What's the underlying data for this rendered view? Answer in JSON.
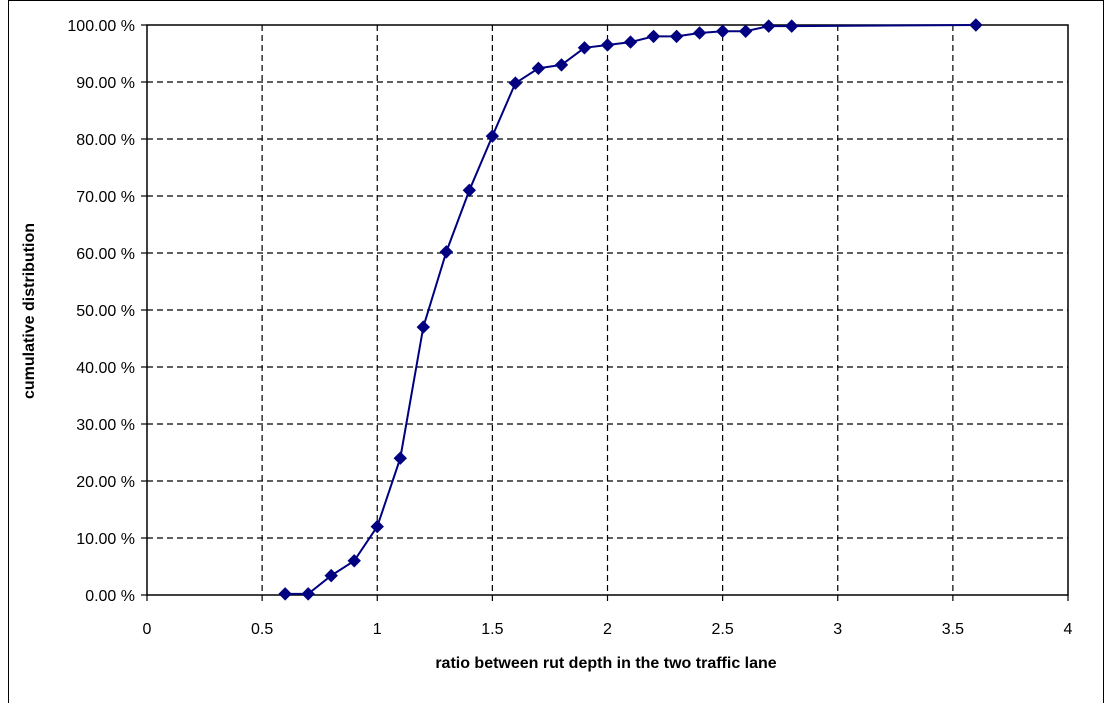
{
  "chart_data": {
    "type": "line",
    "xlabel": "ratio between rut depth in the two traffic lane",
    "ylabel": "cumulative distribution",
    "xlim": [
      0,
      4
    ],
    "ylim": [
      0,
      100
    ],
    "x_ticks": [
      "0",
      "0.5",
      "1",
      "1.5",
      "2",
      "2.5",
      "3",
      "3.5",
      "4"
    ],
    "y_ticks": [
      "0.00 %",
      "10.00 %",
      "20.00 %",
      "30.00 %",
      "40.00 %",
      "50.00 %",
      "60.00 %",
      "70.00 %",
      "80.00 %",
      "90.00 %",
      "100.00 %"
    ],
    "grid": true,
    "grid_style": "dashed",
    "series": [
      {
        "color": "#000080",
        "marker": "diamond",
        "x": [
          0.6,
          0.7,
          0.8,
          0.9,
          1.0,
          1.1,
          1.2,
          1.3,
          1.4,
          1.5,
          1.6,
          1.7,
          1.8,
          1.9,
          2.0,
          2.1,
          2.2,
          2.3,
          2.4,
          2.5,
          2.6,
          2.7,
          2.8,
          3.6
        ],
        "y": [
          0.2,
          0.2,
          3.4,
          6.0,
          12.0,
          24.0,
          47.0,
          60.2,
          71.0,
          80.5,
          89.8,
          92.4,
          93.0,
          96.0,
          96.5,
          97.0,
          98.0,
          98.0,
          98.6,
          98.9,
          98.9,
          99.8,
          99.8,
          100.0
        ]
      }
    ]
  }
}
